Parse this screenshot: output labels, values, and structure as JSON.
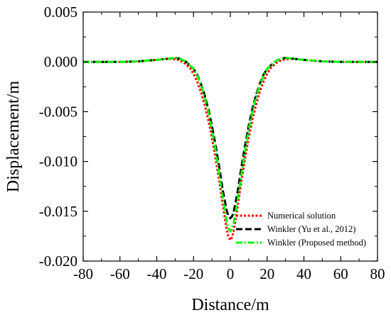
{
  "chart_data": {
    "type": "line",
    "xlabel": "Distance/m",
    "ylabel": "Displacement/m",
    "xlim": [
      -80,
      80
    ],
    "ylim": [
      -0.02,
      0.005
    ],
    "xticks": [
      -80,
      -60,
      -40,
      -20,
      0,
      20,
      40,
      60,
      80
    ],
    "xtick_labels": [
      "-80",
      "-60",
      "-40",
      "-20",
      "0",
      "20",
      "40",
      "60",
      "80"
    ],
    "yticks": [
      -0.02,
      -0.015,
      -0.01,
      -0.005,
      0.0,
      0.005
    ],
    "ytick_labels": [
      "-0.020",
      "-0.015",
      "-0.010",
      "-0.005",
      "0.000",
      "0.005"
    ],
    "grid": false,
    "legend_position": "bottom-right",
    "series": [
      {
        "name": "Numerical solution",
        "color": "#ff0000",
        "style": "dotted",
        "x": [
          -80,
          -70,
          -60,
          -50,
          -40,
          -35,
          -32,
          -28,
          -25,
          -22,
          -20,
          -18,
          -16,
          -14,
          -12,
          -10,
          -8,
          -6,
          -4,
          -2,
          -1,
          0,
          1,
          2,
          4,
          6,
          8,
          10,
          12,
          14,
          16,
          18,
          20,
          22,
          25,
          28,
          32,
          35,
          40,
          50,
          60,
          70,
          80
        ],
        "y": [
          0.0,
          0.0,
          0.0,
          5e-05,
          0.0002,
          0.0003,
          0.0003,
          0.0002,
          -0.0001,
          -0.0006,
          -0.0012,
          -0.002,
          -0.003,
          -0.0043,
          -0.0058,
          -0.0076,
          -0.0097,
          -0.012,
          -0.0145,
          -0.0168,
          -0.0176,
          -0.0179,
          -0.0176,
          -0.0168,
          -0.0145,
          -0.012,
          -0.0097,
          -0.0076,
          -0.0058,
          -0.0043,
          -0.003,
          -0.002,
          -0.0012,
          -0.0006,
          -0.0001,
          0.0002,
          0.0003,
          0.0003,
          0.0002,
          5e-05,
          0.0,
          0.0,
          0.0
        ]
      },
      {
        "name": "Winkler (Yu et al., 2012)",
        "color": "#000000",
        "style": "dashed",
        "x": [
          -80,
          -70,
          -60,
          -50,
          -40,
          -35,
          -30,
          -27,
          -24,
          -20,
          -18,
          -16,
          -14,
          -12,
          -10,
          -8,
          -6,
          -4,
          -2,
          -1,
          0,
          1,
          2,
          4,
          6,
          8,
          10,
          12,
          14,
          16,
          18,
          20,
          24,
          27,
          30,
          35,
          40,
          50,
          60,
          70,
          80
        ],
        "y": [
          0.0,
          0.0,
          0.0,
          5e-05,
          0.0002,
          0.0003,
          0.0004,
          0.0003,
          0.0,
          -0.0007,
          -0.0013,
          -0.0022,
          -0.0033,
          -0.0047,
          -0.0064,
          -0.0084,
          -0.0106,
          -0.013,
          -0.0149,
          -0.0155,
          -0.0157,
          -0.0155,
          -0.0149,
          -0.013,
          -0.0106,
          -0.0084,
          -0.0064,
          -0.0047,
          -0.0033,
          -0.0022,
          -0.0013,
          -0.0007,
          0.0,
          0.0003,
          0.0004,
          0.0003,
          0.0002,
          5e-05,
          0.0,
          0.0,
          0.0
        ]
      },
      {
        "name": "Winkler (Proposed method)",
        "color": "#00ff00",
        "style": "dashdot",
        "x": [
          -80,
          -70,
          -60,
          -50,
          -40,
          -35,
          -30,
          -27,
          -24,
          -20,
          -18,
          -16,
          -14,
          -12,
          -10,
          -8,
          -6,
          -4,
          -2,
          -1,
          0,
          1,
          2,
          4,
          6,
          8,
          10,
          12,
          14,
          16,
          18,
          20,
          24,
          27,
          30,
          35,
          40,
          50,
          60,
          70,
          80
        ],
        "y": [
          0.0,
          0.0,
          0.0,
          5e-05,
          0.0002,
          0.0003,
          0.0004,
          0.0003,
          0.0,
          -0.0007,
          -0.0014,
          -0.0023,
          -0.0035,
          -0.005,
          -0.0068,
          -0.0089,
          -0.0113,
          -0.0138,
          -0.016,
          -0.0167,
          -0.017,
          -0.0167,
          -0.016,
          -0.0138,
          -0.0113,
          -0.0089,
          -0.0068,
          -0.005,
          -0.0035,
          -0.0023,
          -0.0014,
          -0.0007,
          0.0,
          0.0003,
          0.0004,
          0.0003,
          0.0002,
          5e-05,
          0.0,
          0.0,
          0.0
        ]
      }
    ]
  }
}
